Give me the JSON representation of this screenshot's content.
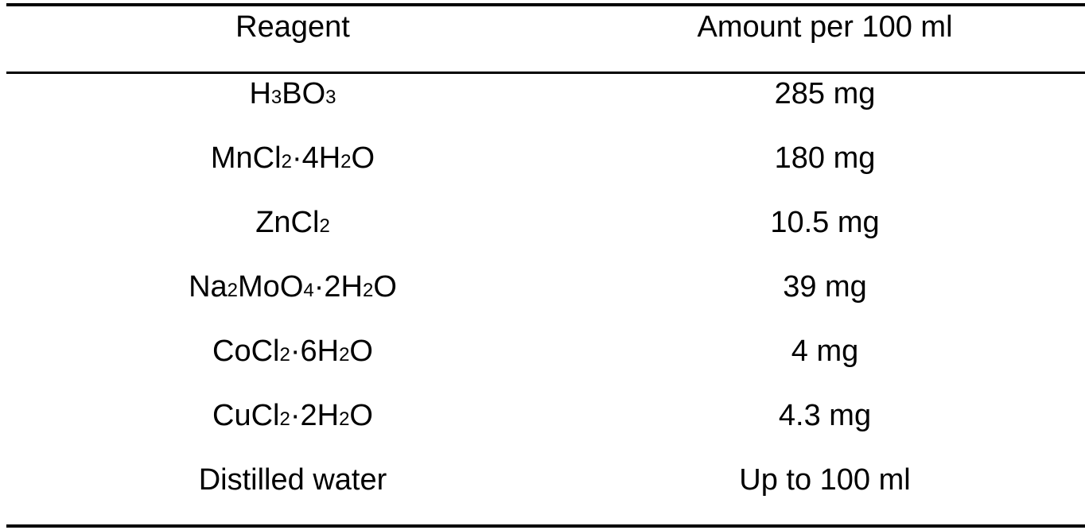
{
  "table": {
    "headers": {
      "reagent": "Reagent",
      "amount": "Amount per 100 ml"
    },
    "rows": [
      {
        "reagent_parts": [
          [
            "H",
            ""
          ],
          [
            "3",
            "sub"
          ],
          [
            "BO",
            ""
          ],
          [
            "3",
            "sub"
          ]
        ],
        "reagent": "H3BO3",
        "amount": "285 mg"
      },
      {
        "reagent_parts": [
          [
            "MnCl",
            ""
          ],
          [
            "2",
            "sub"
          ],
          [
            "·4H",
            ""
          ],
          [
            "2",
            "sub"
          ],
          [
            "O",
            ""
          ]
        ],
        "reagent": "MnCl2·4H2O",
        "amount": "180 mg"
      },
      {
        "reagent_parts": [
          [
            "ZnCl",
            ""
          ],
          [
            "2",
            "sub"
          ]
        ],
        "reagent": "ZnCl2",
        "amount": "10.5 mg"
      },
      {
        "reagent_parts": [
          [
            "Na",
            ""
          ],
          [
            "2",
            "sub"
          ],
          [
            "MoO",
            ""
          ],
          [
            "4",
            "sub"
          ],
          [
            "·2H",
            ""
          ],
          [
            "2",
            "sub"
          ],
          [
            "O",
            ""
          ]
        ],
        "reagent": "Na2MoO4·2H2O",
        "amount": "39 mg"
      },
      {
        "reagent_parts": [
          [
            "CoCl",
            ""
          ],
          [
            "2",
            "sub"
          ],
          [
            "·6H",
            ""
          ],
          [
            "2",
            "sub"
          ],
          [
            "O",
            ""
          ]
        ],
        "reagent": "CoCl2·6H2O",
        "amount": "4 mg"
      },
      {
        "reagent_parts": [
          [
            "CuCl",
            ""
          ],
          [
            "2",
            "sub"
          ],
          [
            "·2H",
            ""
          ],
          [
            "2",
            "sub"
          ],
          [
            "O",
            ""
          ]
        ],
        "reagent": "CuCl2·2H2O",
        "amount": "4.3 mg"
      },
      {
        "reagent_parts": [
          [
            "Distilled water",
            ""
          ]
        ],
        "reagent": "Distilled water",
        "amount": "Up to 100 ml"
      }
    ]
  }
}
